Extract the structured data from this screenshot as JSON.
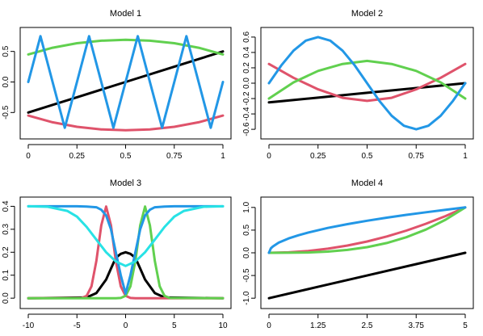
{
  "chart_data": [
    {
      "type": "line",
      "title": "Model 1",
      "xlabel": "",
      "ylabel": "",
      "xlim": [
        0,
        1
      ],
      "ylim": [
        -0.8,
        0.76
      ],
      "xticks": [
        0,
        0.25,
        0.5,
        0.75,
        1
      ],
      "xtick_labels": [
        "0",
        "0.25",
        "0.5",
        "0.75",
        "1"
      ],
      "yticks": [
        -0.5,
        0,
        0.5
      ],
      "ytick_labels": [
        "-0.5",
        "0.0",
        "0.5"
      ],
      "series": [
        {
          "color": "#000000",
          "x": [
            0,
            0.25,
            0.5,
            0.75,
            1
          ],
          "values": [
            -0.5,
            -0.25,
            0,
            0.25,
            0.5
          ]
        },
        {
          "color": "#DF536B",
          "x": [
            0,
            0.125,
            0.25,
            0.375,
            0.5,
            0.625,
            0.75,
            0.875,
            1
          ],
          "values": [
            -0.55,
            -0.66,
            -0.734,
            -0.776,
            -0.79,
            -0.776,
            -0.734,
            -0.66,
            -0.55
          ]
        },
        {
          "color": "#61D04F",
          "x": [
            0,
            0.125,
            0.25,
            0.375,
            0.5,
            0.625,
            0.75,
            0.875,
            1
          ],
          "values": [
            0.45,
            0.56,
            0.634,
            0.676,
            0.69,
            0.676,
            0.634,
            0.56,
            0.45
          ]
        },
        {
          "color": "#2297E6",
          "x": [
            0,
            0.0625,
            0.125,
            0.1875,
            0.25,
            0.3125,
            0.375,
            0.4375,
            0.5,
            0.5625,
            0.625,
            0.6875,
            0.75,
            0.8125,
            0.875,
            0.9375,
            1
          ],
          "values": [
            0,
            0.75,
            0,
            -0.75,
            0,
            0.75,
            0,
            -0.75,
            0,
            0.75,
            0,
            -0.75,
            0,
            0.75,
            0,
            -0.75,
            0
          ]
        }
      ]
    },
    {
      "type": "line",
      "title": "Model 2",
      "xlabel": "",
      "ylabel": "",
      "xlim": [
        0,
        1
      ],
      "ylim": [
        -0.62,
        0.62
      ],
      "xticks": [
        0,
        0.25,
        0.5,
        0.75,
        1
      ],
      "xtick_labels": [
        "0",
        "0.25",
        "0.5",
        "0.75",
        "1"
      ],
      "yticks": [
        -0.6,
        -0.4,
        -0.2,
        0,
        0.2,
        0.4,
        0.6
      ],
      "ytick_labels": [
        "-0.6",
        "-0.4",
        "-0.2",
        "0.0",
        "0.2",
        "0.4",
        "0.6"
      ],
      "series": [
        {
          "color": "#000000",
          "x": [
            0,
            0.25,
            0.5,
            0.75,
            1
          ],
          "values": [
            -0.25,
            -0.188,
            -0.125,
            -0.063,
            0
          ]
        },
        {
          "color": "#DF536B",
          "x": [
            0,
            0.125,
            0.25,
            0.375,
            0.5,
            0.625,
            0.75,
            0.875,
            1
          ],
          "values": [
            0.25,
            0.07,
            -0.08,
            -0.19,
            -0.23,
            -0.19,
            -0.08,
            0.07,
            0.25
          ]
        },
        {
          "color": "#61D04F",
          "x": [
            0,
            0.125,
            0.25,
            0.375,
            0.5,
            0.625,
            0.75,
            0.875,
            1
          ],
          "values": [
            -0.2,
            0.01,
            0.16,
            0.25,
            0.29,
            0.25,
            0.16,
            0.01,
            -0.2
          ]
        },
        {
          "color": "#2297E6",
          "x": [
            0,
            0.0625,
            0.125,
            0.1875,
            0.25,
            0.3125,
            0.375,
            0.4375,
            0.5,
            0.5625,
            0.625,
            0.6875,
            0.75,
            0.8125,
            0.875,
            0.9375,
            1
          ],
          "values": [
            0,
            0.23,
            0.424,
            0.554,
            0.6,
            0.554,
            0.424,
            0.23,
            0,
            -0.23,
            -0.424,
            -0.554,
            -0.6,
            -0.554,
            -0.424,
            -0.23,
            0
          ]
        }
      ]
    },
    {
      "type": "line",
      "title": "Model 3",
      "xlabel": "",
      "ylabel": "",
      "xlim": [
        -10,
        10
      ],
      "ylim": [
        -0.01,
        0.405
      ],
      "xticks": [
        -10,
        -5,
        0,
        5,
        10
      ],
      "xtick_labels": [
        "-10",
        "-5",
        "0",
        "5",
        "10"
      ],
      "yticks": [
        0,
        0.1,
        0.2,
        0.3,
        0.4
      ],
      "ytick_labels": [
        "0.0",
        "0.1",
        "0.2",
        "0.3",
        "0.4"
      ],
      "series": [
        {
          "color": "#000000",
          "x": [
            -10,
            -4,
            -3,
            -2,
            -1.5,
            -1,
            -0.5,
            0,
            0.5,
            1,
            1.5,
            2,
            3,
            4,
            10
          ],
          "values": [
            0,
            0.003,
            0.022,
            0.081,
            0.129,
            0.176,
            0.193,
            0.2,
            0.193,
            0.176,
            0.129,
            0.081,
            0.022,
            0.003,
            0
          ]
        },
        {
          "color": "#DF536B",
          "x": [
            -10,
            -4.5,
            -4,
            -3.5,
            -3,
            -2.5,
            -2,
            -1.5,
            -1,
            -0.5,
            0,
            0.5,
            1,
            10
          ],
          "values": [
            0,
            0.001,
            0.01,
            0.052,
            0.162,
            0.317,
            0.399,
            0.317,
            0.162,
            0.052,
            0.01,
            0.001,
            0,
            0
          ]
        },
        {
          "color": "#61D04F",
          "x": [
            -10,
            -1,
            -0.5,
            0,
            0.5,
            1,
            1.5,
            2,
            2.5,
            3,
            3.5,
            4,
            4.5,
            10
          ],
          "values": [
            0,
            0,
            0.001,
            0.01,
            0.052,
            0.162,
            0.317,
            0.399,
            0.317,
            0.162,
            0.052,
            0.01,
            0.001,
            0
          ]
        },
        {
          "color": "#2297E6",
          "x": [
            -10,
            -5,
            -4,
            -3,
            -2.5,
            -2,
            -1.5,
            -1,
            -0.5,
            0,
            0.5,
            1,
            1.5,
            2,
            2.5,
            3,
            4,
            5,
            10
          ],
          "values": [
            0.4,
            0.4,
            0.399,
            0.396,
            0.385,
            0.36,
            0.3,
            0.2,
            0.1,
            0.02,
            0.1,
            0.2,
            0.3,
            0.36,
            0.385,
            0.396,
            0.399,
            0.4,
            0.4
          ]
        },
        {
          "color": "#28E2E5",
          "x": [
            -10,
            -8,
            -6,
            -5,
            -4,
            -3,
            -2,
            -1,
            0,
            1,
            2,
            3,
            4,
            5,
            6,
            8,
            10
          ],
          "values": [
            0.4,
            0.398,
            0.38,
            0.355,
            0.31,
            0.255,
            0.2,
            0.16,
            0.14,
            0.16,
            0.2,
            0.255,
            0.31,
            0.355,
            0.38,
            0.398,
            0.4
          ]
        }
      ]
    },
    {
      "type": "line",
      "title": "Model 4",
      "xlabel": "",
      "ylabel": "",
      "xlim": [
        0,
        5
      ],
      "ylim": [
        -1.05,
        1.05
      ],
      "xticks": [
        0,
        1.25,
        2.5,
        3.75,
        5
      ],
      "xtick_labels": [
        "0",
        "1.25",
        "2.5",
        "3.75",
        "5"
      ],
      "yticks": [
        -1,
        -0.5,
        0,
        0.5,
        1
      ],
      "ytick_labels": [
        "-1.0",
        "-0.5",
        "0.0",
        "0.5",
        "1.0"
      ],
      "series": [
        {
          "color": "#000000",
          "x": [
            0,
            1.25,
            2.5,
            3.75,
            5
          ],
          "values": [
            -1,
            -0.75,
            -0.5,
            -0.25,
            0
          ]
        },
        {
          "color": "#DF536B",
          "x": [
            0,
            0.5,
            1,
            1.5,
            2,
            2.5,
            3,
            3.5,
            4,
            4.5,
            5
          ],
          "values": [
            0,
            0.01,
            0.04,
            0.09,
            0.16,
            0.25,
            0.36,
            0.49,
            0.64,
            0.81,
            1
          ]
        },
        {
          "color": "#61D04F",
          "x": [
            0,
            0.5,
            1,
            1.5,
            2,
            2.5,
            3,
            3.5,
            4,
            4.5,
            5
          ],
          "values": [
            0,
            0.001,
            0.008,
            0.027,
            0.064,
            0.125,
            0.216,
            0.343,
            0.512,
            0.729,
            1
          ]
        },
        {
          "color": "#2297E6",
          "x": [
            0,
            0.05,
            0.1,
            0.25,
            0.5,
            0.75,
            1,
            1.5,
            2,
            2.5,
            3,
            3.5,
            4,
            4.5,
            5
          ],
          "values": [
            0,
            0.1,
            0.141,
            0.224,
            0.316,
            0.387,
            0.447,
            0.548,
            0.632,
            0.707,
            0.775,
            0.837,
            0.894,
            0.949,
            1
          ]
        }
      ]
    }
  ]
}
